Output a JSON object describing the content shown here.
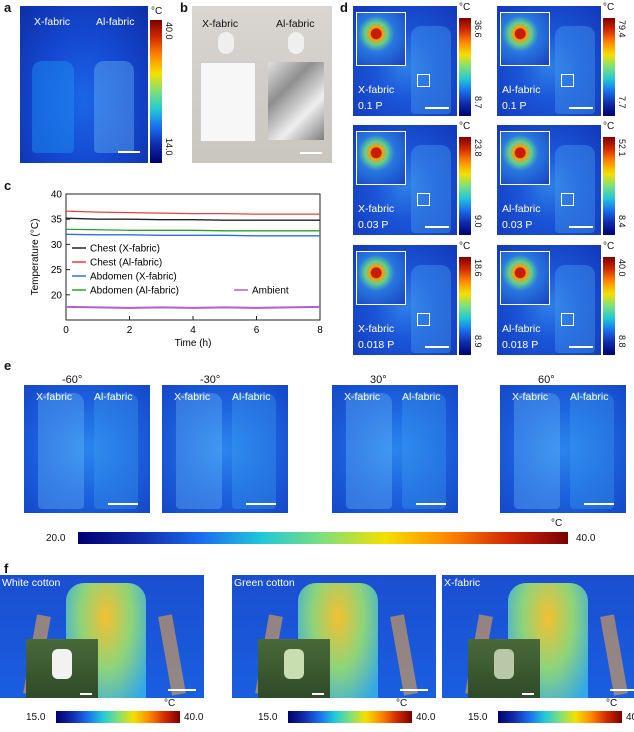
{
  "panels": {
    "a": {
      "label": "a",
      "left_text": "X-fabric",
      "right_text": "Al-fabric",
      "unit": "°C",
      "max": "40.0",
      "min": "14.0"
    },
    "b": {
      "label": "b",
      "left_text": "X-fabric",
      "right_text": "Al-fabric"
    },
    "c": {
      "label": "c"
    },
    "d": {
      "label": "d",
      "unit": "°C",
      "cells": [
        {
          "name": "X-fabric",
          "power": "0.1 P",
          "max": "36.6",
          "min": "8.7"
        },
        {
          "name": "Al-fabric",
          "power": "0.1 P",
          "max": "79.4",
          "min": "7.7"
        },
        {
          "name": "X-fabric",
          "power": "0.03 P",
          "max": "23.8",
          "min": "9.0"
        },
        {
          "name": "Al-fabric",
          "power": "0.03 P",
          "max": "52.1",
          "min": "8.4"
        },
        {
          "name": "X-fabric",
          "power": "0.018 P",
          "max": "18.6",
          "min": "8.9"
        },
        {
          "name": "Al-fabric",
          "power": "0.018 P",
          "max": "40.0",
          "min": "8.8"
        }
      ]
    },
    "e": {
      "label": "e",
      "angles": [
        "-60°",
        "-30°",
        "30°",
        "60°"
      ],
      "left_text": "X-fabric",
      "right_text": "Al-fabric",
      "unit": "°C",
      "min": "20.0",
      "max": "40.0"
    },
    "f": {
      "label": "f",
      "items": [
        {
          "title": "White cotton",
          "min": "15.0",
          "max": "40.0"
        },
        {
          "title": "Green cotton",
          "min": "15.0",
          "max": "40.0"
        },
        {
          "title": "X-fabric",
          "min": "15.0",
          "max": "40.0"
        }
      ],
      "unit": "°C"
    }
  },
  "chart_data": {
    "type": "line",
    "title": "",
    "xlabel": "Time (h)",
    "ylabel": "Temperature (°C)",
    "xlim": [
      0,
      8
    ],
    "ylim": [
      15,
      40
    ],
    "xticks": [
      "0",
      "2",
      "4",
      "6",
      "8"
    ],
    "yticks": [
      "20",
      "25",
      "30",
      "35",
      "40"
    ],
    "x": [
      0,
      1,
      2,
      3,
      4,
      5,
      6,
      7,
      8
    ],
    "series": [
      {
        "name": "Chest (X-fabric)",
        "color": "#222222",
        "values": [
          35.2,
          35.0,
          35.0,
          34.9,
          34.9,
          34.8,
          34.8,
          34.8,
          34.8
        ]
      },
      {
        "name": "Chest (Al-fabric)",
        "color": "#e8413c",
        "values": [
          36.6,
          36.4,
          36.3,
          36.2,
          36.1,
          36.1,
          36.0,
          36.0,
          36.0
        ]
      },
      {
        "name": "Abdomen (X-fabric)",
        "color": "#2f6fdc",
        "values": [
          32.0,
          31.9,
          31.9,
          31.8,
          31.8,
          31.8,
          31.7,
          31.7,
          31.7
        ]
      },
      {
        "name": "Abdomen (Al-fabric)",
        "color": "#2ca02c",
        "values": [
          33.0,
          32.9,
          32.8,
          32.8,
          32.8,
          32.7,
          32.7,
          32.7,
          32.7
        ]
      },
      {
        "name": "Ambient",
        "color": "#b05fd0",
        "values": [
          17.6,
          17.5,
          17.4,
          17.5,
          17.4,
          17.5,
          17.4,
          17.5,
          17.6
        ]
      }
    ],
    "legend_position": "bottom-left"
  }
}
